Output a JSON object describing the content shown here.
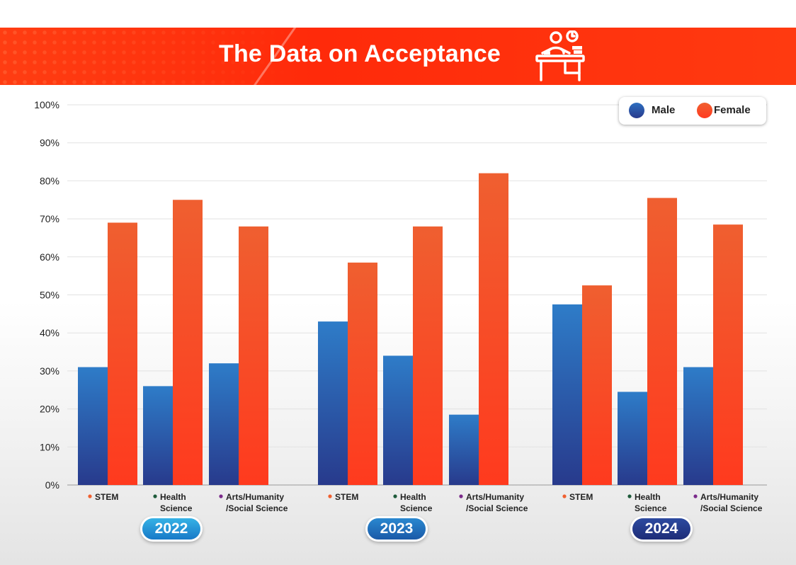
{
  "header": {
    "title": "The Data on Acceptance"
  },
  "colors": {
    "male_top": "#2e78c8",
    "male_bottom": "#283a8c",
    "female_top": "#f06030",
    "female_bottom": "#ff3a20",
    "header": "#ff2a0a",
    "dot_stem": "#f06030",
    "dot_health": "#1e5a3a",
    "dot_arts": "#7a2a8a"
  },
  "legend": {
    "male": "Male",
    "female": "Female"
  },
  "chart_data": {
    "type": "bar",
    "title": "The Data on Acceptance",
    "ylim": [
      0,
      100
    ],
    "y_ticks": [
      "0%",
      "10%",
      "20%",
      "30%",
      "40%",
      "50%",
      "60%",
      "70%",
      "80%",
      "90%",
      "100%"
    ],
    "grid": true,
    "legend_position": "top-right",
    "categories": [
      "STEM",
      "Health Science",
      "Arts/Humanity /Social Science"
    ],
    "groups": [
      {
        "year": "2022",
        "items": [
          {
            "label1": "STEM",
            "label2": "",
            "dot": "stem",
            "male": 31,
            "female": 69
          },
          {
            "label1": "Health",
            "label2": "Science",
            "dot": "health",
            "male": 26,
            "female": 75
          },
          {
            "label1": "Arts/Humanity",
            "label2": "/Social Science",
            "dot": "arts",
            "male": 32,
            "female": 68
          }
        ]
      },
      {
        "year": "2023",
        "items": [
          {
            "label1": "STEM",
            "label2": "",
            "dot": "stem",
            "male": 43,
            "female": 58.5
          },
          {
            "label1": "Health",
            "label2": "Science",
            "dot": "health",
            "male": 34,
            "female": 68
          },
          {
            "label1": "Arts/Humanity",
            "label2": "/Social Science",
            "dot": "arts",
            "male": 18.5,
            "female": 82
          }
        ]
      },
      {
        "year": "2024",
        "items": [
          {
            "label1": "STEM",
            "label2": "",
            "dot": "stem",
            "male": 47.5,
            "female": 52.5
          },
          {
            "label1": "Health",
            "label2": "Science",
            "dot": "health",
            "male": 24.5,
            "female": 75.5
          },
          {
            "label1": "Arts/Humanity",
            "label2": "/Social Science",
            "dot": "arts",
            "male": 31,
            "female": 68.5
          }
        ]
      }
    ]
  }
}
